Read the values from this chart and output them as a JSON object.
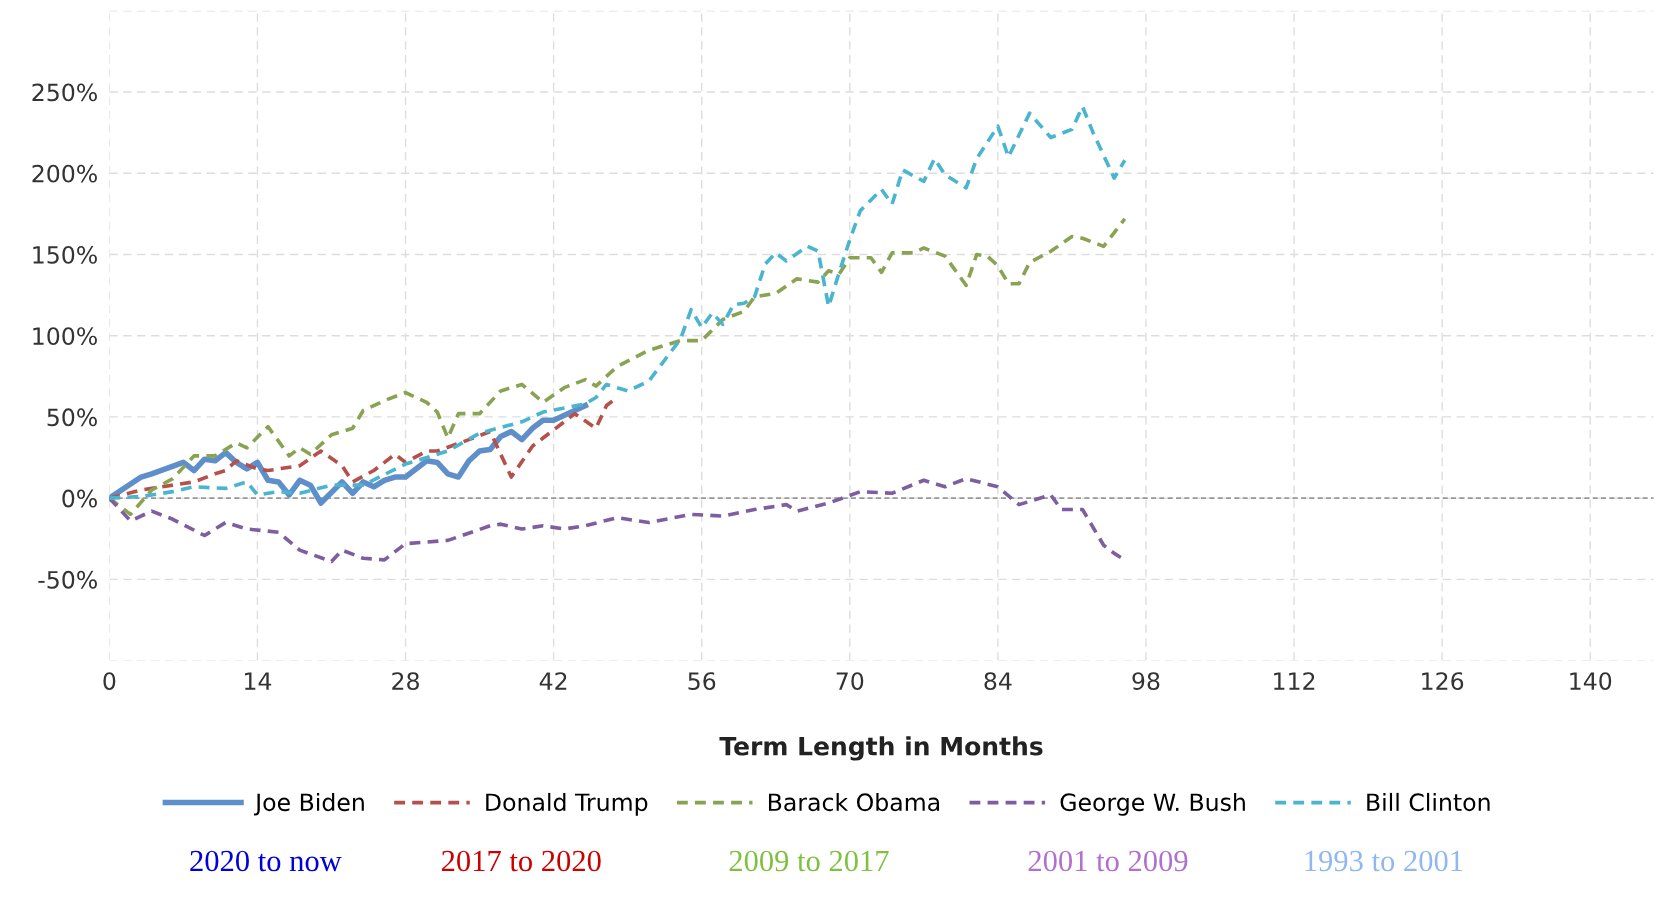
{
  "chart_data": {
    "type": "line",
    "xlabel": "Term Length in Months",
    "xlim": [
      0,
      146
    ],
    "xticks": [
      0,
      14,
      28,
      42,
      56,
      70,
      84,
      98,
      112,
      126,
      140
    ],
    "ylim": [
      -100,
      300
    ],
    "yticks": [
      {
        "value": -100,
        "label": null
      },
      {
        "value": -50,
        "label": "-50%"
      },
      {
        "value": 0,
        "label": "0%"
      },
      {
        "value": 50,
        "label": "50%"
      },
      {
        "value": 100,
        "label": "100%"
      },
      {
        "value": 150,
        "label": "150%"
      },
      {
        "value": 200,
        "label": "200%"
      },
      {
        "value": 250,
        "label": "250%"
      },
      {
        "value": 300,
        "label": null
      }
    ],
    "grid": true,
    "legend": "bottom",
    "marker": "none",
    "ref_lines": [
      {
        "axis": "y",
        "value": 0,
        "label": null,
        "color": "#999999",
        "line_style": "dashed"
      }
    ],
    "annotations": [
      "2020 to now",
      "2017 to 2020",
      "2009 to 2017",
      "2001 to 2009",
      "1993 to 2001"
    ],
    "series": [
      {
        "name": "Joe Biden",
        "color": "#5f8fcb",
        "line_style": "solid",
        "x": [
          0,
          3,
          4,
          7,
          8,
          9,
          10,
          11,
          12,
          13,
          14,
          15,
          16,
          17,
          18,
          19,
          20,
          22,
          23,
          24,
          25,
          26,
          27,
          28,
          30,
          31,
          32,
          33,
          34,
          35,
          36,
          37,
          38,
          39,
          40,
          41,
          42,
          44,
          45
        ],
        "values": [
          0,
          13,
          15,
          22,
          17,
          24,
          23,
          28,
          22,
          18,
          22,
          11,
          10,
          2,
          11,
          8,
          -3,
          10,
          3,
          10,
          7,
          11,
          13,
          13,
          23,
          22,
          15,
          13,
          23,
          29,
          30,
          38,
          41,
          36,
          43,
          48,
          48,
          54,
          57
        ]
      },
      {
        "name": "Donald Trump",
        "color": "#b5504a",
        "line_style": "dashed",
        "x": [
          0,
          3,
          6,
          8,
          10,
          11,
          12,
          14,
          15,
          18,
          20,
          22,
          23,
          25,
          27,
          28,
          30,
          31,
          34,
          36,
          38,
          40,
          41,
          44,
          46,
          47,
          48
        ],
        "values": [
          0,
          5,
          8,
          10,
          15,
          17,
          23,
          18,
          17,
          20,
          29,
          20,
          10,
          17,
          27,
          22,
          29,
          29,
          36,
          41,
          13,
          32,
          37,
          52,
          43,
          57,
          62
        ]
      },
      {
        "name": "Barack Obama",
        "color": "#8aa352",
        "line_style": "dashed",
        "x": [
          0,
          2,
          4,
          6,
          8,
          10,
          12,
          13,
          15,
          17,
          18,
          19,
          21,
          23,
          24,
          26,
          28,
          30,
          31,
          32,
          33,
          35,
          37,
          39,
          41,
          43,
          45,
          46,
          48,
          51,
          54,
          56,
          58,
          60,
          61,
          63,
          65,
          67,
          68,
          69,
          70,
          72,
          73,
          74,
          76,
          77,
          79,
          81,
          82,
          83,
          84,
          85,
          86,
          87,
          89,
          91,
          92,
          94,
          96
        ],
        "values": [
          0,
          -10,
          5,
          12,
          26,
          26,
          34,
          31,
          44,
          26,
          31,
          27,
          39,
          43,
          54,
          60,
          65,
          59,
          53,
          37,
          52,
          52,
          66,
          70,
          59,
          68,
          73,
          69,
          81,
          91,
          97,
          97,
          110,
          115,
          124,
          126,
          135,
          133,
          140,
          138,
          148,
          148,
          139,
          151,
          151,
          154,
          149,
          131,
          150,
          149,
          143,
          132,
          132,
          145,
          152,
          161,
          160,
          155,
          172
        ]
      },
      {
        "name": "George W. Bush",
        "color": "#7d5ea0",
        "line_style": "dashed",
        "x": [
          0,
          2,
          4,
          6,
          9,
          11,
          13,
          16,
          18,
          21,
          22,
          24,
          26,
          28,
          32,
          36,
          37,
          39,
          41,
          43,
          45,
          48,
          51,
          55,
          58,
          61,
          64,
          65,
          68,
          71,
          74,
          77,
          79,
          81,
          84,
          86,
          89,
          90,
          92,
          94,
          95,
          96
        ],
        "values": [
          0,
          -14,
          -8,
          -13,
          -23,
          -15,
          -19,
          -21,
          -32,
          -39,
          -32,
          -37,
          -38,
          -28,
          -26,
          -17,
          -16,
          -19,
          -17,
          -19,
          -17,
          -12,
          -15,
          -10,
          -11,
          -7,
          -4,
          -8,
          -3,
          4,
          3,
          11,
          7,
          12,
          7,
          -4,
          2,
          -7,
          -7,
          -29,
          -34,
          -38
        ]
      },
      {
        "name": "Bill Clinton",
        "color": "#4bb5d0",
        "line_style": "dashed",
        "x": [
          0,
          3,
          6,
          8,
          11,
          13,
          14,
          16,
          18,
          21,
          24,
          28,
          32,
          35,
          39,
          41,
          45,
          46,
          47,
          49,
          51,
          54,
          55,
          56,
          57,
          58,
          59,
          60,
          61,
          62,
          63,
          64,
          66,
          67,
          68,
          69,
          70,
          71,
          73,
          74,
          75,
          77,
          78,
          79,
          81,
          82,
          84,
          85,
          87,
          89,
          91,
          92,
          93,
          95,
          96
        ],
        "values": [
          0,
          1,
          4,
          7,
          6,
          10,
          2,
          4,
          3,
          8,
          8,
          21,
          29,
          40,
          47,
          53,
          58,
          62,
          70,
          66,
          72,
          98,
          116,
          105,
          114,
          107,
          119,
          120,
          124,
          144,
          151,
          146,
          155,
          152,
          118,
          139,
          159,
          177,
          190,
          181,
          202,
          195,
          209,
          199,
          191,
          209,
          229,
          210,
          237,
          222,
          227,
          241,
          225,
          197,
          208
        ]
      }
    ]
  }
}
